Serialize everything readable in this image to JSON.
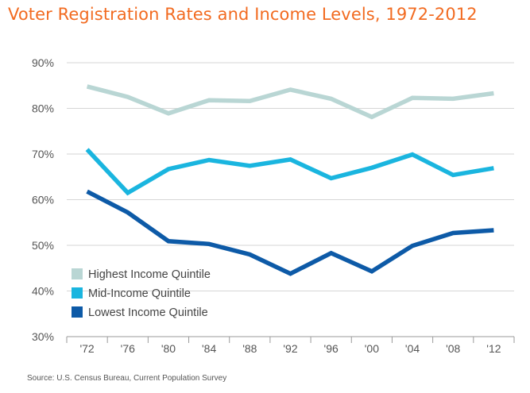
{
  "title": "Voter Registration Rates and Income Levels, 1972-2012",
  "source": "Source: U.S. Census Bureau, Current Population Survey",
  "chart_data": {
    "type": "line",
    "title": "Voter Registration Rates and Income Levels, 1972-2012",
    "xlabel": "",
    "ylabel": "",
    "categories": [
      "'72",
      "'76",
      "'80",
      "'84",
      "'88",
      "'92",
      "'96",
      "'00",
      "'04",
      "'08",
      "'12"
    ],
    "ylim": [
      30,
      90
    ],
    "yticks": [
      30,
      40,
      50,
      60,
      70,
      80,
      90
    ],
    "ytick_labels": [
      "30%",
      "40%",
      "50%",
      "60%",
      "70%",
      "80%",
      "90%"
    ],
    "grid": true,
    "legend_position": "bottom-left",
    "series": [
      {
        "name": "Highest Income Quintile",
        "color": "#b9d6d4",
        "values": [
          84.8,
          82.5,
          78.9,
          81.8,
          81.6,
          84.1,
          82.1,
          78.1,
          82.3,
          82.1,
          83.3
        ]
      },
      {
        "name": "Mid-Income Quintile",
        "color": "#1ab5df",
        "values": [
          71.0,
          61.5,
          66.7,
          68.7,
          67.4,
          68.8,
          64.7,
          67.0,
          69.9,
          65.4,
          66.9
        ]
      },
      {
        "name": "Lowest Income Quintile",
        "color": "#0d5aa7",
        "values": [
          61.8,
          57.2,
          50.9,
          50.3,
          48.0,
          43.8,
          48.3,
          44.3,
          49.9,
          52.7,
          53.3
        ]
      }
    ]
  }
}
